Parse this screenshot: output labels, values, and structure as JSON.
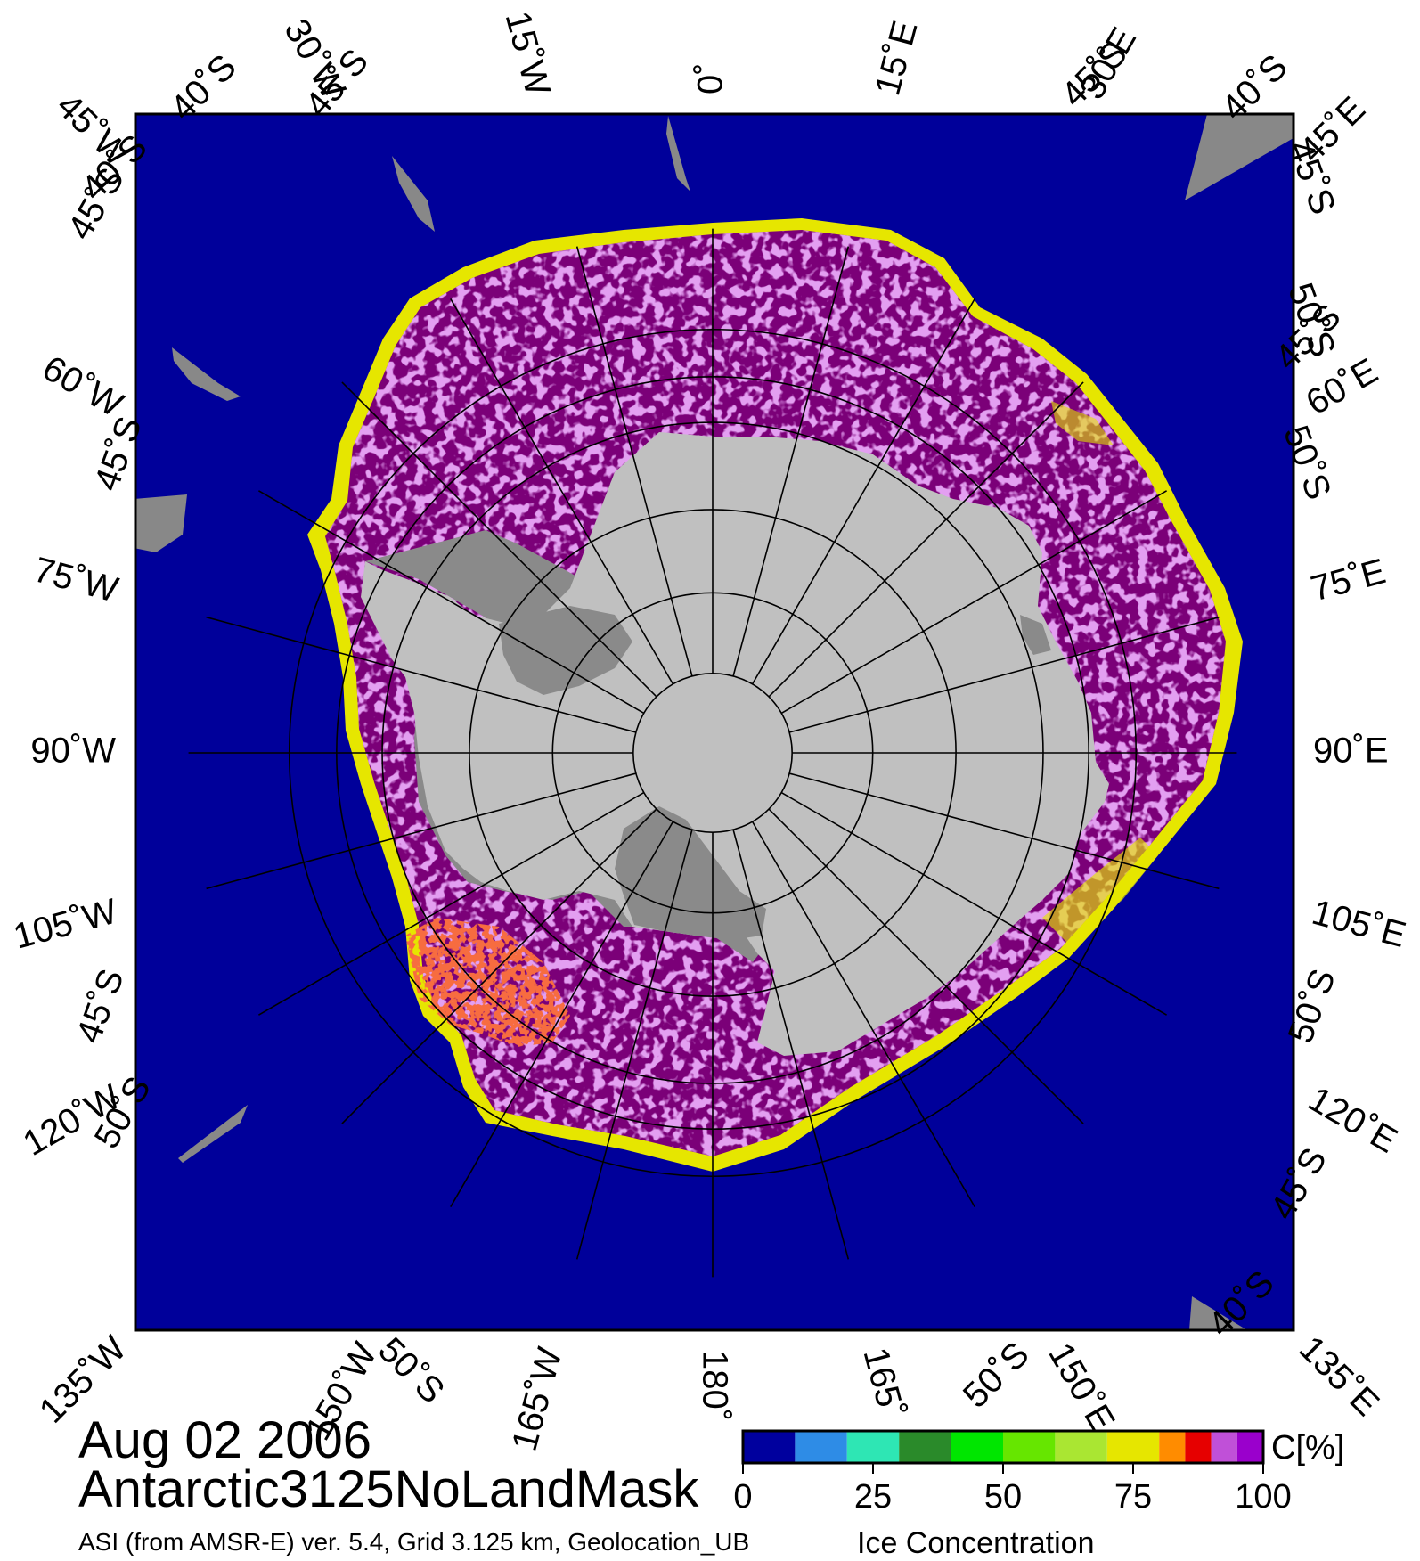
{
  "title": {
    "date": "Aug 02 2006",
    "dataset": "Antarctic3125NoLandMask",
    "source": "ASI (from AMSR-E) ver. 5.4,  Grid 3.125 km, Geolocation_UB",
    "quantity": "Ice Concentration"
  },
  "colorbar": {
    "unit": "C[%]",
    "range": [
      0,
      100
    ],
    "tick_labels": [
      "0",
      "25",
      "50",
      "75",
      "100"
    ],
    "tick_values": [
      0,
      25,
      50,
      75,
      100
    ],
    "colors": [
      "#00009e",
      "#2e8ce6",
      "#2ee6b4",
      "#2a8a2a",
      "#00e600",
      "#66e600",
      "#aae632",
      "#e6e600",
      "#ff8c00",
      "#e60000",
      "#c050d8",
      "#9a00cc"
    ]
  },
  "map": {
    "projection": "polar stereographic, south pole",
    "colors": {
      "ocean": "#00009a",
      "ice_full": "#7b0078",
      "ice_purple": "#9b1fbf",
      "ice_light": "#c45ae0",
      "ice_edge": "#e6e600",
      "ice_red": "#ee2200",
      "land_continent": "#c0c0c0",
      "land_shelf": "#8a8a8a",
      "land_other": "#888888",
      "graticule": "#000000"
    },
    "latitudes_deg": [
      -50,
      -60,
      -70,
      -80
    ],
    "longitudes_deg": [
      0,
      15,
      30,
      45,
      60,
      75,
      90,
      105,
      120,
      135,
      150,
      165,
      180,
      -165,
      -150,
      -135,
      -120,
      -105,
      -90,
      -75,
      -60,
      -45,
      -30,
      -15
    ],
    "lon_labels": [
      {
        "text": "0˚"
      },
      {
        "text": "15˚E"
      },
      {
        "text": "30˚E"
      },
      {
        "text": "45˚E"
      },
      {
        "text": "60˚E"
      },
      {
        "text": "75˚E"
      },
      {
        "text": "90˚E"
      },
      {
        "text": "105˚E"
      },
      {
        "text": "120˚E"
      },
      {
        "text": "135˚E"
      },
      {
        "text": "150˚E"
      },
      {
        "text": "165˚"
      },
      {
        "text": "180˚"
      },
      {
        "text": "165˚W"
      },
      {
        "text": "150˚W"
      },
      {
        "text": "135˚W"
      },
      {
        "text": "120˚W"
      },
      {
        "text": "105˚W"
      },
      {
        "text": "90˚W"
      },
      {
        "text": "75˚W"
      },
      {
        "text": "60˚W"
      },
      {
        "text": "45˚W"
      },
      {
        "text": "30˚W"
      },
      {
        "text": "15˚W"
      }
    ],
    "lat_labels": [
      {
        "text": "40˚S"
      },
      {
        "text": "45˚S"
      },
      {
        "text": "45˚S"
      },
      {
        "text": "40˚S"
      },
      {
        "text": "40˚S"
      },
      {
        "text": "45˚S"
      },
      {
        "text": "50˚S"
      },
      {
        "text": "50˚S"
      },
      {
        "text": "45˚S"
      },
      {
        "text": "45˚S"
      },
      {
        "text": "50˚S"
      },
      {
        "text": "50˚S"
      },
      {
        "text": "45˚S"
      },
      {
        "text": "45˚S"
      },
      {
        "text": "50˚S"
      },
      {
        "text": "50˚S"
      },
      {
        "text": "40˚S"
      },
      {
        "text": "45˚S"
      }
    ]
  }
}
